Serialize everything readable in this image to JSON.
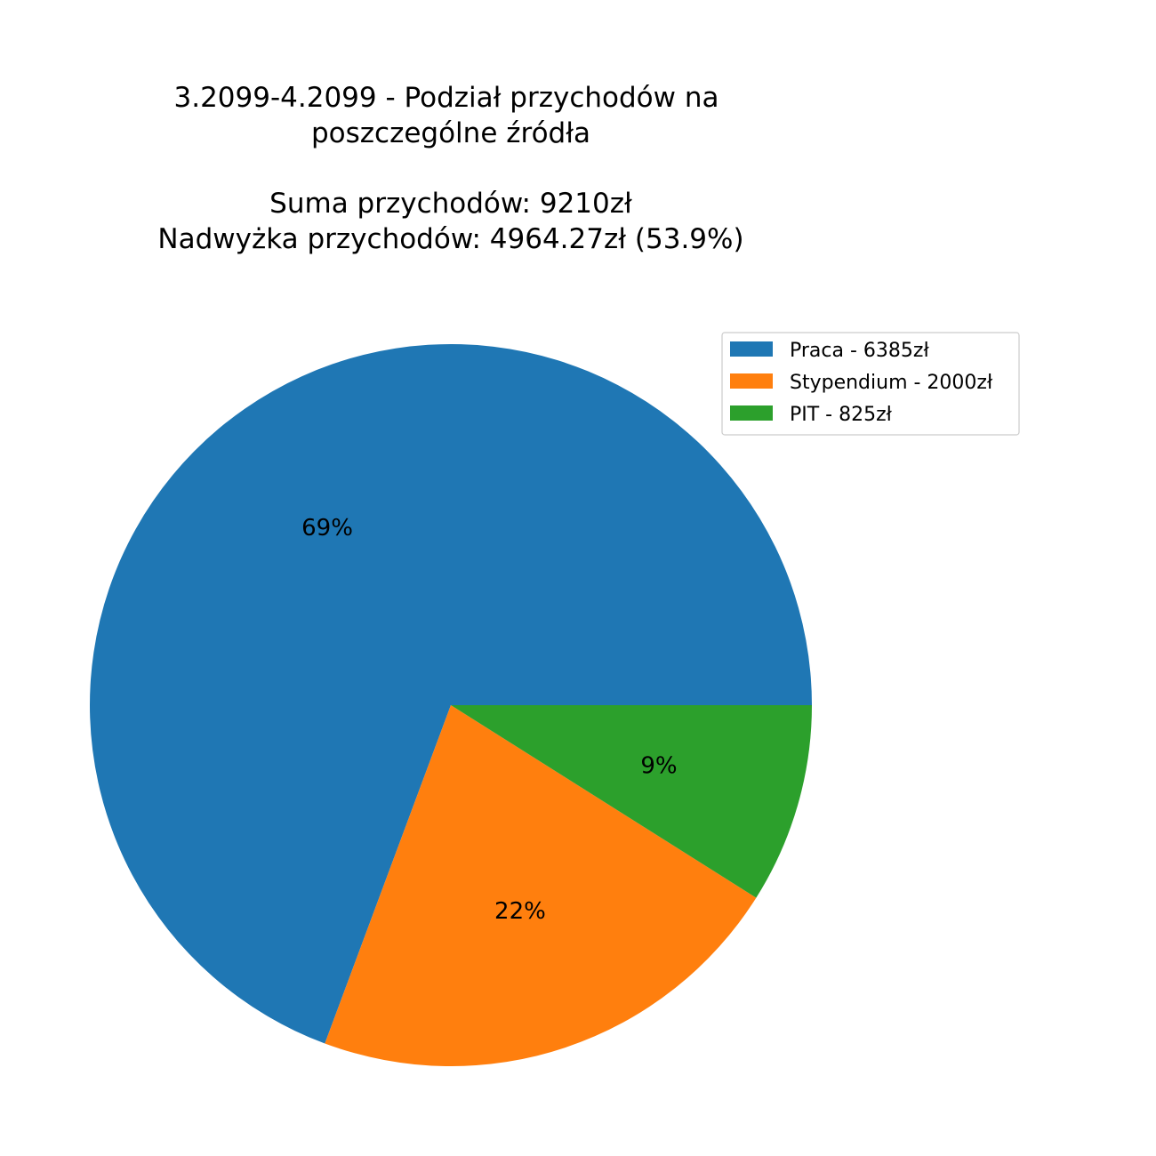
{
  "chart_data": {
    "type": "pie",
    "title_lines": [
      "3.2099-4.2099 - Podział przychodów na",
      "poszczególne źródła",
      "",
      "Suma przychodów: 9210zł",
      "Nadwyżka przychodów: 4964.27zł  (53.9%)"
    ],
    "categories": [
      "Praca",
      "Stypendium",
      "PIT"
    ],
    "values": [
      6385,
      2000,
      825
    ],
    "percent_labels": [
      "69%",
      "22%",
      "9%"
    ],
    "legend_entries": [
      "Praca - 6385zł",
      "Stypendium - 2000zł",
      "PIT - 825zł"
    ],
    "colors": [
      "#1f77b4",
      "#ff7f0e",
      "#2ca02c"
    ],
    "start_angle_deg": 0,
    "direction": "counterclockwise",
    "legend_position": "upper-right"
  }
}
